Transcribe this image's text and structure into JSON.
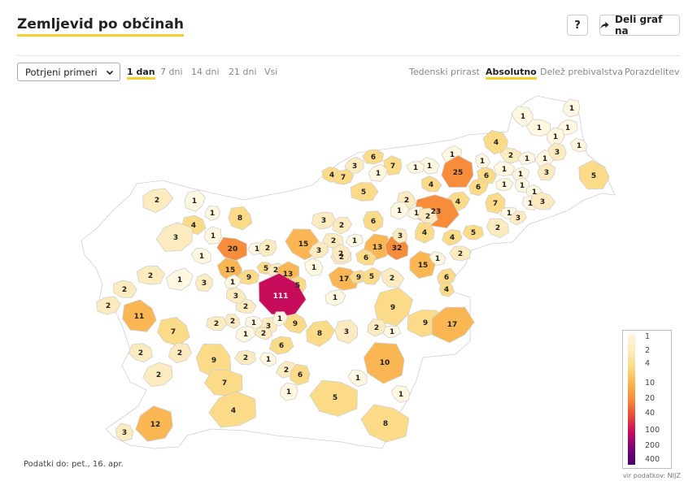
{
  "header": {
    "title": "Zemljevid po občinah",
    "help_label": "?",
    "share_label": "Deli graf na",
    "share_icon": "share-arrow-icon"
  },
  "controls": {
    "select_value": "Potrjeni primeri",
    "periods": [
      "1 dan",
      "7 dni",
      "14 dni",
      "21 dni",
      "Vsi"
    ],
    "active_period": "1 dan",
    "modes": [
      "Tedenski prirast",
      "Absolutno",
      "Delež prebivalstva",
      "Porazdelitev"
    ],
    "active_mode": "Absolutno"
  },
  "map": {
    "region": "Slovenija – občine",
    "colors": {
      "none": "#ffffff",
      "c1": "#fff7df",
      "c2": "#fdebc0",
      "c4": "#fbdb88",
      "c10": "#f9b652",
      "c20": "#f78c3a",
      "c40": "#ea4a3b",
      "c100": "#c70c5c",
      "border": "#cfcfcf"
    },
    "labels": [
      {
        "value": "1"
      },
      {
        "value": "1"
      },
      {
        "value": "1"
      },
      {
        "value": "1"
      },
      {
        "value": "1"
      },
      {
        "value": "4"
      },
      {
        "value": "2"
      },
      {
        "value": "1"
      },
      {
        "value": "1"
      },
      {
        "value": "3"
      },
      {
        "value": "1"
      },
      {
        "value": "6"
      },
      {
        "value": "3"
      },
      {
        "value": "7"
      },
      {
        "value": "1"
      },
      {
        "value": "1"
      },
      {
        "value": "1"
      },
      {
        "value": "25"
      },
      {
        "value": "6"
      },
      {
        "value": "1"
      },
      {
        "value": "1"
      },
      {
        "value": "3"
      },
      {
        "value": "5"
      },
      {
        "value": "4"
      },
      {
        "value": "7"
      },
      {
        "value": "1"
      },
      {
        "value": "1"
      },
      {
        "value": "4"
      },
      {
        "value": "1"
      },
      {
        "value": "6"
      },
      {
        "value": "1"
      },
      {
        "value": "1"
      },
      {
        "value": "5"
      },
      {
        "value": "4"
      },
      {
        "value": "7"
      },
      {
        "value": "1"
      },
      {
        "value": "3"
      },
      {
        "value": "2"
      },
      {
        "value": "1"
      },
      {
        "value": "2"
      },
      {
        "value": "23"
      },
      {
        "value": "1"
      },
      {
        "value": "1"
      },
      {
        "value": "8"
      },
      {
        "value": "4"
      },
      {
        "value": "3"
      },
      {
        "value": "2"
      },
      {
        "value": "6"
      },
      {
        "value": "2"
      },
      {
        "value": "1"
      },
      {
        "value": "3"
      },
      {
        "value": "4"
      },
      {
        "value": "2"
      },
      {
        "value": "5"
      },
      {
        "value": "4"
      },
      {
        "value": "1"
      },
      {
        "value": "15"
      },
      {
        "value": "2"
      },
      {
        "value": "1"
      },
      {
        "value": "13"
      },
      {
        "value": "32"
      },
      {
        "value": "20"
      },
      {
        "value": "1"
      },
      {
        "value": "2"
      },
      {
        "value": "3"
      },
      {
        "value": "1"
      },
      {
        "value": "2"
      },
      {
        "value": "3"
      },
      {
        "value": "15"
      },
      {
        "value": "1"
      },
      {
        "value": "2"
      },
      {
        "value": "3"
      },
      {
        "value": "1"
      },
      {
        "value": "15"
      },
      {
        "value": "5"
      },
      {
        "value": "2"
      },
      {
        "value": "13"
      },
      {
        "value": "1"
      },
      {
        "value": "17"
      },
      {
        "value": "9"
      },
      {
        "value": "5"
      },
      {
        "value": "2"
      },
      {
        "value": "6"
      },
      {
        "value": "9"
      },
      {
        "value": "1"
      },
      {
        "value": "5"
      },
      {
        "value": "2"
      },
      {
        "value": "2"
      },
      {
        "value": "1"
      },
      {
        "value": "3"
      },
      {
        "value": "111"
      },
      {
        "value": "2"
      },
      {
        "value": "1"
      },
      {
        "value": "9"
      },
      {
        "value": "11"
      },
      {
        "value": "2"
      },
      {
        "value": "2"
      },
      {
        "value": "6"
      },
      {
        "value": "4"
      },
      {
        "value": "3"
      },
      {
        "value": "9"
      },
      {
        "value": "8"
      },
      {
        "value": "3"
      },
      {
        "value": "9"
      },
      {
        "value": "2"
      },
      {
        "value": "17"
      },
      {
        "value": "3"
      },
      {
        "value": "7"
      },
      {
        "value": "1"
      },
      {
        "value": "1"
      },
      {
        "value": "1"
      },
      {
        "value": "2"
      },
      {
        "value": "2"
      },
      {
        "value": "6"
      },
      {
        "value": "2"
      },
      {
        "value": "9"
      },
      {
        "value": "2"
      },
      {
        "value": "1"
      },
      {
        "value": "2"
      },
      {
        "value": "10"
      },
      {
        "value": "1"
      },
      {
        "value": "2"
      },
      {
        "value": "2"
      },
      {
        "value": "6"
      },
      {
        "value": "1"
      },
      {
        "value": "7"
      },
      {
        "value": "2"
      },
      {
        "value": "1"
      },
      {
        "value": "1"
      },
      {
        "value": "5"
      },
      {
        "value": "4"
      },
      {
        "value": "12"
      },
      {
        "value": "3"
      },
      {
        "value": "8"
      }
    ]
  },
  "legend": {
    "ticks": [
      "1",
      "2",
      "4",
      "10",
      "20",
      "40",
      "100",
      "200",
      "400"
    ],
    "gradient": [
      "#fff7df",
      "#fdebc0",
      "#fbdb88",
      "#f9b652",
      "#f78c3a",
      "#ea4a3b",
      "#c70c5c",
      "#7a0177",
      "#49006a"
    ],
    "source": "vir podatkov: NIJZ"
  },
  "footer": {
    "data_date": "Podatki do: pet., 16. apr."
  }
}
